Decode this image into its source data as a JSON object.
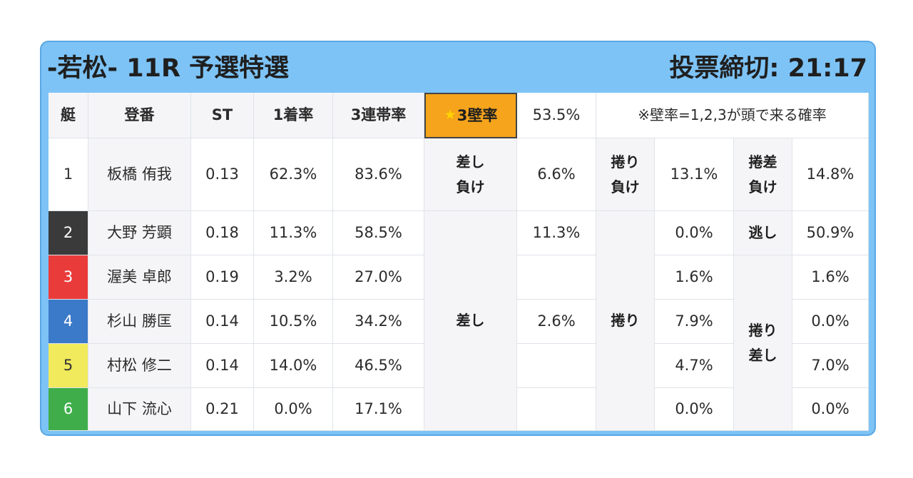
{
  "header": {
    "race_title": "-若松- 11R 予選特選",
    "deadline": "投票締切: 21:17"
  },
  "table": {
    "headers": {
      "lane": "艇",
      "name": "登番",
      "st": "ST",
      "first": "1着率",
      "top3": "3連帯率",
      "wall_star": "★",
      "wall": "3壁率",
      "wall_value": "53.5%",
      "note": "※壁率=1,2,3が頭で来る確率"
    },
    "rows": [
      {
        "lane": "1",
        "name": "板橋 侑我",
        "st": "0.13",
        "first": "62.3%",
        "top3": "83.6%",
        "lane_color": "#ffffff"
      },
      {
        "lane": "2",
        "name": "大野 芳顕",
        "st": "0.18",
        "first": "11.3%",
        "top3": "58.5%",
        "lane_color": "#3a3a3a"
      },
      {
        "lane": "3",
        "name": "渥美 卓郎",
        "st": "0.19",
        "first": "3.2%",
        "top3": "27.0%",
        "lane_color": "#ea3b3b"
      },
      {
        "lane": "4",
        "name": "杉山 勝匡",
        "st": "0.14",
        "first": "10.5%",
        "top3": "34.2%",
        "lane_color": "#3b79c9"
      },
      {
        "lane": "5",
        "name": "村松 修二",
        "st": "0.14",
        "first": "14.0%",
        "top3": "46.5%",
        "lane_color": "#f0ea5c"
      },
      {
        "lane": "6",
        "name": "山下 流心",
        "st": "0.21",
        "first": "0.0%",
        "top3": "17.1%",
        "lane_color": "#3fae4a"
      }
    ],
    "top_row": {
      "sashi_make": "差し\n負け",
      "sashi_make_value": "6.6%",
      "makuri_make": "捲り\n負け",
      "makuri_make_value": "13.1%",
      "makurisashi_make": "捲差\n負け",
      "makurisashi_make_value": "14.8%"
    },
    "sashi_label": "差し",
    "sashi_values": [
      "11.3%",
      "",
      "2.6%",
      "",
      ""
    ],
    "makuri_label": "捲り",
    "makuri_values": [
      "0.0%",
      "1.6%",
      "7.9%",
      "4.7%",
      "0.0%"
    ],
    "nige_label": "逃し",
    "nige_value": "50.9%",
    "makurisashi_label": "捲り\n差し",
    "makurisashi_values": [
      "1.6%",
      "0.0%",
      "7.0%",
      "0.0%"
    ]
  }
}
